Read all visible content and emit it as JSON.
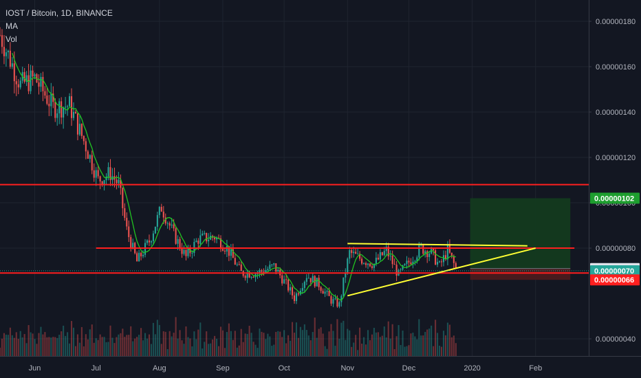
{
  "legend": {
    "title": "IOST / Bitcoin, 1D, BINANCE",
    "ma": "MA",
    "vol": "Vol"
  },
  "colors": {
    "background": "#131722",
    "up": "#26a69a",
    "down": "#ef5350",
    "ma": "#21c421",
    "support_resistance": "#ff1f1f",
    "trendline": "#ffff33",
    "target_zone": "#133a1f",
    "stop_zone": "#4a1a1d",
    "grid": "#1f2430",
    "axis_text": "#b2b5be"
  },
  "chart_data": {
    "type": "candlestick",
    "symbol": "IOST / Bitcoin",
    "interval": "1D",
    "exchange": "BINANCE",
    "y_unit": "BTC",
    "ylim": [
      3.2e-07,
      1.86e-06
    ],
    "y_ticks": [
      "0.00000040",
      "0.00000080",
      "0.00000100",
      "0.00000120",
      "0.00000140",
      "0.00000160",
      "0.00000180"
    ],
    "x_ticks": [
      {
        "label": "Jun",
        "date": "2019-06-01"
      },
      {
        "label": "Jul",
        "date": "2019-07-01"
      },
      {
        "label": "Aug",
        "date": "2019-08-01"
      },
      {
        "label": "Sep",
        "date": "2019-09-01"
      },
      {
        "label": "Oct",
        "date": "2019-10-01"
      },
      {
        "label": "Nov",
        "date": "2019-11-01"
      },
      {
        "label": "Dec",
        "date": "2019-12-01"
      },
      {
        "label": "2020",
        "date": "2020-01-01"
      },
      {
        "label": "Feb",
        "date": "2020-02-01"
      }
    ],
    "x_range": [
      "2019-05-15",
      "2020-02-27"
    ],
    "price_path": [
      {
        "date": "2019-05-15",
        "price": 1.74e-06
      },
      {
        "date": "2019-05-25",
        "price": 1.52e-06
      },
      {
        "date": "2019-06-01",
        "price": 1.55e-06
      },
      {
        "date": "2019-06-10",
        "price": 1.42e-06
      },
      {
        "date": "2019-06-18",
        "price": 1.43e-06
      },
      {
        "date": "2019-06-26",
        "price": 1.25e-06
      },
      {
        "date": "2019-07-02",
        "price": 1.1e-06
      },
      {
        "date": "2019-07-08",
        "price": 1.13e-06
      },
      {
        "date": "2019-07-12",
        "price": 1.08e-06
      },
      {
        "date": "2019-07-16",
        "price": 8.8e-07
      },
      {
        "date": "2019-07-21",
        "price": 7.4e-07
      },
      {
        "date": "2019-07-27",
        "price": 8.3e-07
      },
      {
        "date": "2019-08-02",
        "price": 9.8e-07
      },
      {
        "date": "2019-08-08",
        "price": 8.6e-07
      },
      {
        "date": "2019-08-14",
        "price": 7.6e-07
      },
      {
        "date": "2019-08-20",
        "price": 8.4e-07
      },
      {
        "date": "2019-08-28",
        "price": 8.5e-07
      },
      {
        "date": "2019-09-03",
        "price": 8e-07
      },
      {
        "date": "2019-09-10",
        "price": 6.9e-07
      },
      {
        "date": "2019-09-18",
        "price": 6.9e-07
      },
      {
        "date": "2019-09-26",
        "price": 7.2e-07
      },
      {
        "date": "2019-10-02",
        "price": 6.4e-07
      },
      {
        "date": "2019-10-06",
        "price": 5.8e-07
      },
      {
        "date": "2019-10-12",
        "price": 6.8e-07
      },
      {
        "date": "2019-10-18",
        "price": 6.4e-07
      },
      {
        "date": "2019-10-24",
        "price": 5.7e-07
      },
      {
        "date": "2019-10-28",
        "price": 5.5e-07
      },
      {
        "date": "2019-10-31",
        "price": 7e-07
      },
      {
        "date": "2019-11-02",
        "price": 7.8e-07
      },
      {
        "date": "2019-11-08",
        "price": 7.5e-07
      },
      {
        "date": "2019-11-14",
        "price": 7.3e-07
      },
      {
        "date": "2019-11-20",
        "price": 7.9e-07
      },
      {
        "date": "2019-11-26",
        "price": 6.8e-07
      },
      {
        "date": "2019-12-02",
        "price": 7.5e-07
      },
      {
        "date": "2019-12-07",
        "price": 8e-07
      },
      {
        "date": "2019-12-12",
        "price": 7.8e-07
      },
      {
        "date": "2019-12-16",
        "price": 7.2e-07
      },
      {
        "date": "2019-12-20",
        "price": 7.9e-07
      },
      {
        "date": "2019-12-24",
        "price": 7.1e-07
      }
    ],
    "horizontal_levels": [
      {
        "price": 1.08e-06,
        "color": "#ff1f1f"
      },
      {
        "price": 8e-07,
        "color": "#ff1f1f",
        "from": "2019-07-01",
        "to": "2020-02-20"
      },
      {
        "price": 6.9e-07,
        "color": "#ff1f1f"
      }
    ],
    "trendlines": [
      {
        "from": {
          "date": "2019-11-01",
          "price": 8.2e-07
        },
        "to": {
          "date": "2020-01-28",
          "price": 8.1e-07
        },
        "color": "#ffff33"
      },
      {
        "from": {
          "date": "2019-11-01",
          "price": 5.9e-07
        },
        "to": {
          "date": "2020-02-01",
          "price": 8e-07
        },
        "color": "#ffff33"
      }
    ],
    "position": {
      "type": "long",
      "start": "2019-12-31",
      "end": "2020-02-18",
      "entry": 7.1e-07,
      "target": 1.02e-06,
      "stop": 6.6e-07
    },
    "price_tags": [
      {
        "label": "0.00000102",
        "price": 1.02e-06,
        "color": "#1e9e2f"
      },
      {
        "label": "0.00000071",
        "price": 7.1e-07,
        "color": "#e0e3eb"
      },
      {
        "label": "0.00000070",
        "price": 7e-07,
        "color": "#26a69a"
      },
      {
        "label": "0.00000066",
        "price": 6.6e-07,
        "color": "#ff1f1f"
      }
    ],
    "last_price": 7e-07
  }
}
